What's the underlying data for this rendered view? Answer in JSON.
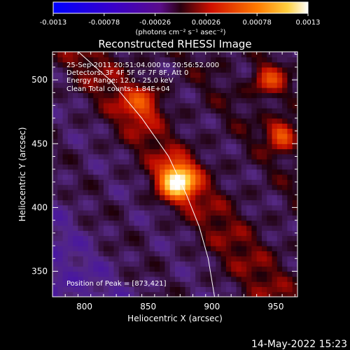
{
  "chart_data": {
    "type": "heatmap",
    "title": "Reconstructed RHESSI Image",
    "xlabel": "Heliocentric X (arcsec)",
    "ylabel": "Heliocentric Y (arcsec)",
    "xlim": [
      775,
      967
    ],
    "ylim": [
      330,
      522
    ],
    "xticks": [
      800,
      850,
      900,
      950
    ],
    "yticks": [
      350,
      400,
      450,
      500
    ],
    "colorbar": {
      "ticks": [
        "-0.0013",
        "-0.00078",
        "-0.00026",
        "0.00026",
        "0.00078",
        "0.0013"
      ],
      "range": [
        -0.0013,
        0.0013
      ],
      "units": "(photons cm⁻² s⁻¹ asec⁻²)"
    },
    "annotations": {
      "time": "25-Sep-2011 20:51:04.000 to 20:56:52.000",
      "detectors": "Detectors: 3F 4F 5F 6F 7F 8F, Att 0",
      "energy": "Energy Range: 12.0 - 25.0 keV",
      "clean": "Clean    Total counts: 1.84E+04",
      "peak": "Position of Peak = [873,421]"
    },
    "peak": [
      873,
      421
    ],
    "limb": {
      "points": [
        [
          793,
          524
        ],
        [
          820,
          500
        ],
        [
          845,
          470
        ],
        [
          866,
          440
        ],
        [
          880,
          410
        ],
        [
          890,
          385
        ],
        [
          897,
          360
        ],
        [
          902,
          330
        ]
      ]
    },
    "stripes": [
      {
        "offset": -115,
        "width": 18,
        "amp": 0.18
      },
      {
        "offset": -60,
        "width": 22,
        "amp": 0.35
      },
      {
        "offset": 8,
        "width": 24,
        "amp": 0.55
      },
      {
        "offset": 70,
        "width": 18,
        "amp": 0.4
      },
      {
        "offset": 120,
        "width": 20,
        "amp": 0.38
      }
    ],
    "hotspots": [
      {
        "x": 873,
        "y": 421,
        "amp": 1.0,
        "sigma": 10
      },
      {
        "x": 955,
        "y": 458,
        "amp": 0.55,
        "sigma": 8
      },
      {
        "x": 945,
        "y": 500,
        "amp": 0.45,
        "sigma": 9
      },
      {
        "x": 845,
        "y": 482,
        "amp": 0.38,
        "sigma": 10
      }
    ]
  },
  "footer": {
    "datestamp": "14-May-2022 15:23"
  }
}
